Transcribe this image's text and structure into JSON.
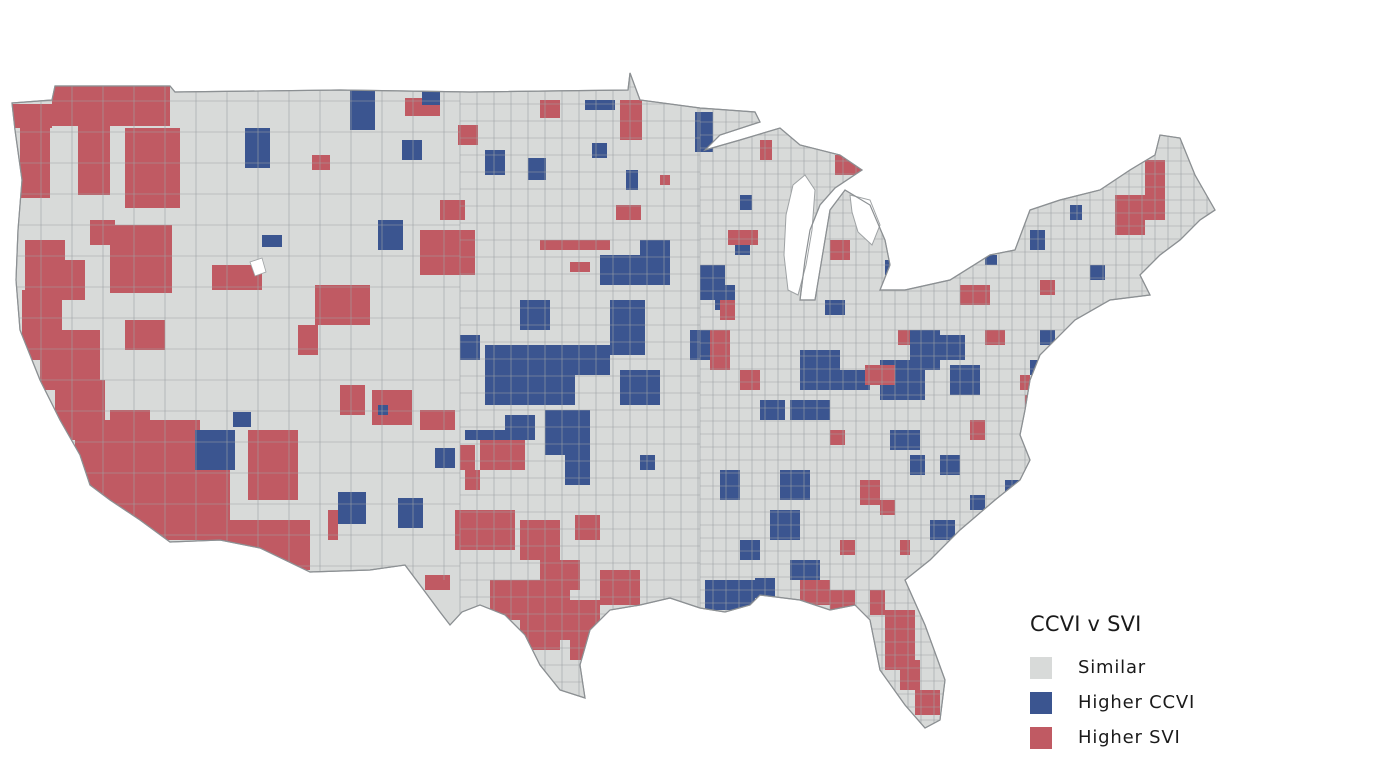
{
  "legend": {
    "title": "CCVI v SVI",
    "items": [
      {
        "key": "similar",
        "label": "Similar",
        "color": "#d8dad9"
      },
      {
        "key": "higher_ccvi",
        "label": "Higher CCVI",
        "color": "#3b5590"
      },
      {
        "key": "higher_svi",
        "label": "Higher SVI",
        "color": "#c05a63"
      }
    ]
  },
  "map": {
    "region": "Contiguous United States",
    "unit": "counties",
    "base_color": "#d8dad9",
    "border_color": "#9ea2a4",
    "water_color": "#ffffff"
  }
}
